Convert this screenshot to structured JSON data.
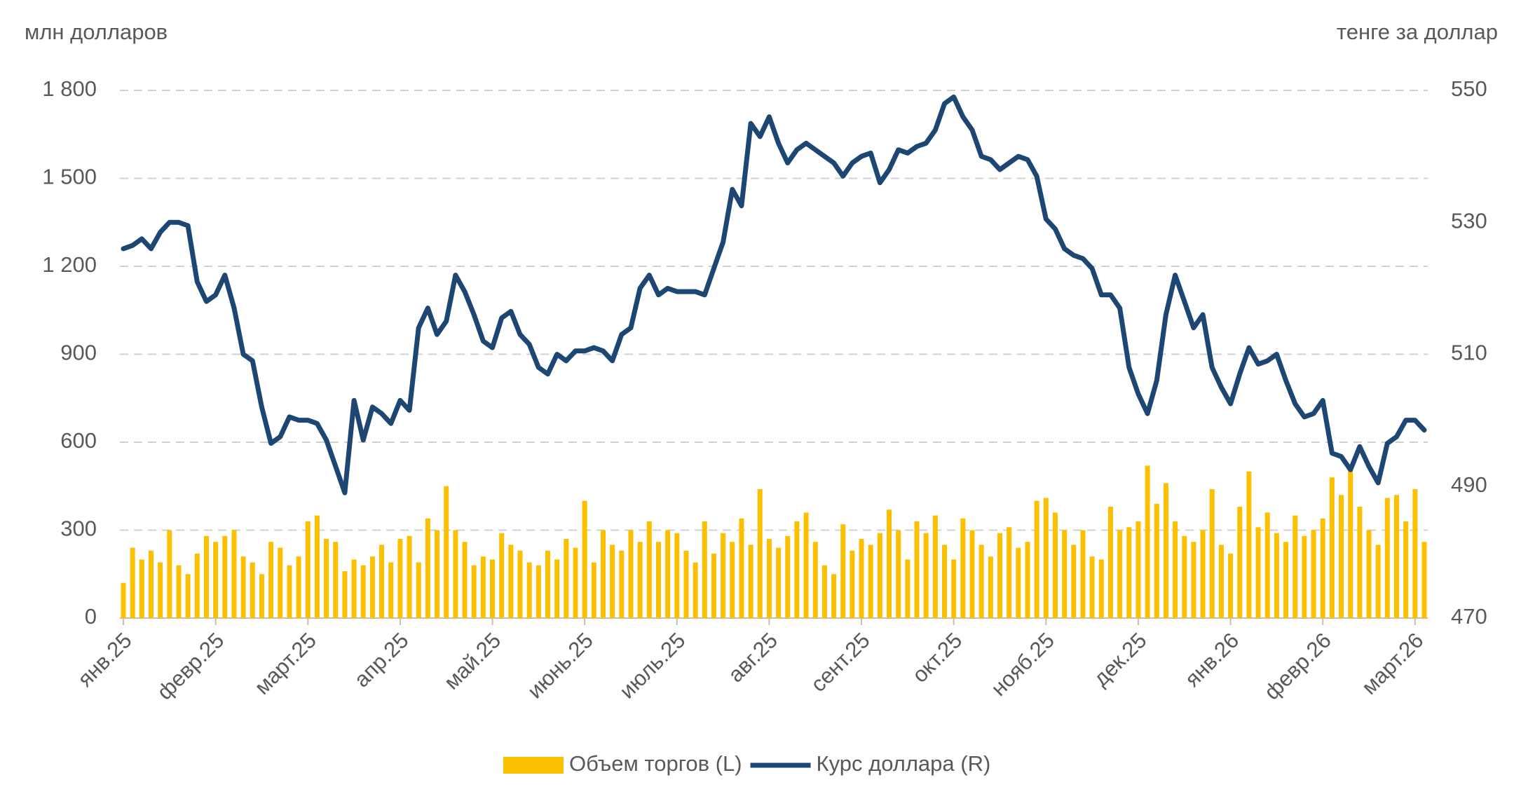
{
  "chart_data": {
    "type": "bar-line",
    "y_label": "млн долларов",
    "y2_label": "тенге за доллар",
    "categories": [
      "янв.25",
      null,
      null,
      null,
      null,
      null,
      null,
      null,
      null,
      null,
      "февр.25",
      null,
      null,
      null,
      null,
      null,
      null,
      null,
      null,
      null,
      "март.25",
      null,
      null,
      null,
      null,
      null,
      null,
      null,
      null,
      null,
      "апр.25",
      null,
      null,
      null,
      null,
      null,
      null,
      null,
      null,
      null,
      "май.25",
      null,
      null,
      null,
      null,
      null,
      null,
      null,
      null,
      null,
      "июнь.25",
      null,
      null,
      null,
      null,
      null,
      null,
      null,
      null,
      null,
      "июль.25",
      null,
      null,
      null,
      null,
      null,
      null,
      null,
      null,
      null,
      "авг.25",
      null,
      null,
      null,
      null,
      null,
      null,
      null,
      null,
      null,
      "сент.25",
      null,
      null,
      null,
      null,
      null,
      null,
      null,
      null,
      null,
      "окт.25",
      null,
      null,
      null,
      null,
      null,
      null,
      null,
      null,
      null,
      "нояб.25",
      null,
      null,
      null,
      null,
      null,
      null,
      null,
      null,
      null,
      "дек.25",
      null,
      null,
      null,
      null,
      null,
      null,
      null,
      null,
      null,
      "янв.26",
      null,
      null,
      null,
      null,
      null,
      null,
      null,
      null,
      null,
      "февр.26",
      null,
      null,
      null,
      null,
      null,
      null,
      null,
      null,
      null,
      "март.26",
      null
    ],
    "series": [
      {
        "name": "Объем торгов (L)",
        "color": "#fcc000",
        "kind": "bar",
        "axis": "y",
        "values": [
          120,
          240,
          200,
          230,
          190,
          300,
          180,
          150,
          220,
          280,
          260,
          280,
          300,
          210,
          190,
          150,
          260,
          240,
          180,
          210,
          330,
          350,
          270,
          260,
          160,
          200,
          180,
          210,
          250,
          190,
          270,
          280,
          190,
          340,
          300,
          450,
          300,
          260,
          180,
          210,
          200,
          290,
          250,
          230,
          190,
          180,
          230,
          200,
          270,
          240,
          400,
          190,
          300,
          250,
          230,
          300,
          260,
          330,
          260,
          300,
          290,
          230,
          190,
          330,
          220,
          290,
          260,
          340,
          250,
          440,
          270,
          240,
          280,
          330,
          360,
          260,
          180,
          150,
          320,
          230,
          270,
          250,
          290,
          370,
          300,
          200,
          330,
          290,
          350,
          250,
          200,
          340,
          300,
          250,
          210,
          290,
          310,
          240,
          260,
          400,
          410,
          360,
          300,
          250,
          300,
          210,
          200,
          380,
          300,
          310,
          330,
          520,
          390,
          460,
          330,
          280,
          260,
          300,
          440,
          250,
          220,
          380,
          500,
          310,
          360,
          290,
          260,
          350,
          280,
          300,
          340,
          480,
          420,
          520,
          380,
          300,
          250,
          410,
          420,
          330,
          440,
          260
        ]
      },
      {
        "name": "Курс доллара (R)",
        "color": "#1d4772",
        "kind": "line",
        "axis": "y2",
        "values": [
          526,
          526.5,
          527.5,
          526,
          528.5,
          530,
          530,
          529.5,
          521,
          518,
          519,
          522,
          517,
          510,
          509,
          502,
          496.5,
          497.5,
          500.5,
          500,
          500,
          499.5,
          497,
          493,
          489,
          503,
          497,
          502,
          501,
          499.5,
          503,
          501.5,
          514,
          517,
          513,
          515,
          522,
          519.5,
          516,
          512,
          511,
          515.5,
          516.5,
          513,
          511.5,
          508,
          507,
          510,
          509,
          510.5,
          510.5,
          511,
          510.5,
          509,
          513,
          514,
          520,
          522,
          519,
          520,
          519.5,
          519.5,
          519.5,
          519,
          523,
          527,
          535,
          532.5,
          545,
          543,
          546,
          542,
          539,
          541,
          542,
          541,
          540,
          539,
          537,
          539,
          540,
          540.5,
          536,
          538,
          541,
          540.5,
          541.5,
          542,
          544,
          548,
          549,
          546,
          544,
          540,
          539.5,
          538,
          539,
          540,
          539.5,
          537,
          530.5,
          529,
          526,
          525,
          524.5,
          523,
          519,
          519,
          517,
          508,
          504,
          501,
          506,
          516,
          522,
          518,
          514,
          516,
          508,
          505,
          502.5,
          507,
          511,
          508.5,
          509,
          510,
          506,
          502.5,
          500.5,
          501,
          503,
          495,
          494.5,
          492.5,
          496,
          493,
          490.5,
          496.5,
          497.5,
          500,
          500,
          498.5
        ]
      }
    ],
    "ylim": [
      0,
      1800
    ],
    "yticks": [
      0,
      300,
      600,
      900,
      {
        "value": 1200,
        "label": "1 200"
      },
      {
        "value": 1500,
        "label": "1 500"
      },
      {
        "value": 1800,
        "label": "1 800"
      }
    ],
    "y2lim": [
      470,
      550
    ],
    "y2ticks": [
      470,
      490,
      510,
      530,
      550
    ],
    "grid": true,
    "legend": "bottom"
  }
}
